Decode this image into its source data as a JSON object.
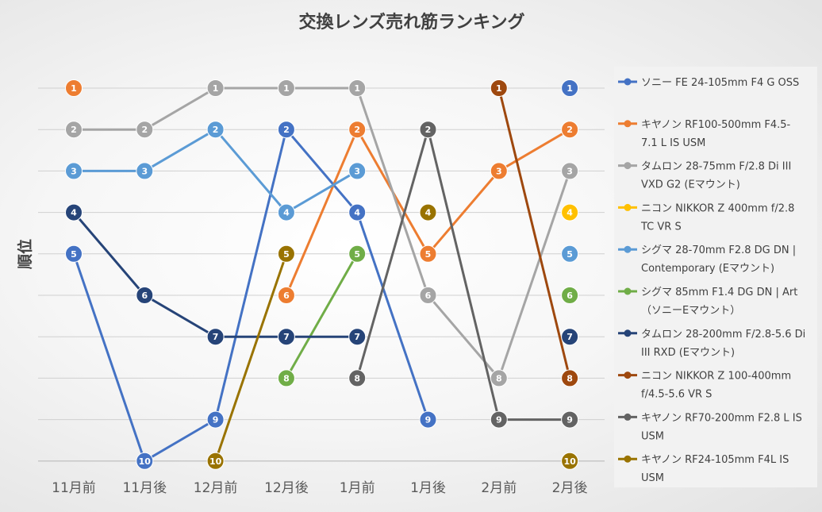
{
  "chart_data": {
    "type": "line",
    "title": "交換レンズ売れ筋ランキング",
    "ylabel": "順位",
    "xlabel": "",
    "categories": [
      "11月前",
      "11月後",
      "12月前",
      "12月後",
      "1月前",
      "1月後",
      "2月前",
      "2月後"
    ],
    "ylim": [
      10,
      1
    ],
    "y_inverted": true,
    "grid": true,
    "legend_position": "right",
    "series": [
      {
        "name": "ソニー FE 24-105mm  F4 G OSS",
        "legend_lines": [
          "ソニー FE 24-105mm  F4 G OSS"
        ],
        "color": "#4472C4",
        "values": [
          5,
          10,
          9,
          2,
          4,
          9,
          null,
          1
        ]
      },
      {
        "name": "キヤノン RF100-500mm F4.5-7.1 L IS USM",
        "legend_lines": [
          "キヤノン RF100-500mm F4.5-",
          "7.1 L IS USM"
        ],
        "color": "#ED7D31",
        "values": [
          1,
          null,
          null,
          6,
          2,
          5,
          3,
          2
        ]
      },
      {
        "name": "タムロン 28-75mm F/2.8 Di III VXD G2 (Eマウント)",
        "legend_lines": [
          "タムロン 28-75mm F/2.8 Di III",
          "VXD G2 (Eマウント)"
        ],
        "color": "#A5A5A5",
        "values": [
          2,
          2,
          1,
          1,
          1,
          6,
          8,
          3
        ]
      },
      {
        "name": "ニコン NIKKOR Z 400mm f/2.8 TC VR S",
        "legend_lines": [
          "ニコン NIKKOR Z 400mm f/2.8",
          "TC VR S"
        ],
        "color": "#FFC000",
        "values": [
          null,
          null,
          null,
          null,
          null,
          null,
          null,
          4
        ]
      },
      {
        "name": "シグマ 28-70mm F2.8 DG DN | Contemporary (Eマウント)",
        "legend_lines": [
          "シグマ 28-70mm F2.8 DG DN |",
          "Contemporary (Eマウント)"
        ],
        "color": "#5B9BD5",
        "values": [
          3,
          3,
          2,
          4,
          3,
          null,
          null,
          5
        ]
      },
      {
        "name": "シグマ 85mm F1.4 DG DN | Art （ソニーEマウント）",
        "legend_lines": [
          "シグマ 85mm F1.4 DG DN | Art",
          "（ソニーEマウント）"
        ],
        "color": "#70AD47",
        "values": [
          null,
          null,
          null,
          8,
          5,
          null,
          null,
          6
        ]
      },
      {
        "name": "タムロン 28-200mm F/2.8-5.6 Di III RXD (Eマウント)",
        "legend_lines": [
          "タムロン 28-200mm F/2.8-5.6 Di",
          "III RXD (Eマウント)"
        ],
        "color": "#264478",
        "values": [
          4,
          6,
          7,
          7,
          7,
          null,
          null,
          7
        ]
      },
      {
        "name": "ニコン NIKKOR Z 100-400mm f/4.5-5.6 VR S",
        "legend_lines": [
          "ニコン NIKKOR Z 100-400mm",
          "f/4.5-5.6 VR S"
        ],
        "color": "#9E480E",
        "values": [
          null,
          null,
          null,
          null,
          null,
          null,
          1,
          8
        ]
      },
      {
        "name": "キヤノン RF70-200mm F2.8 L IS USM",
        "legend_lines": [
          "キヤノン RF70-200mm F2.8 L IS",
          "USM"
        ],
        "color": "#636363",
        "values": [
          null,
          null,
          null,
          null,
          8,
          2,
          9,
          9
        ]
      },
      {
        "name": "キヤノン RF24-105mm F4L IS USM",
        "legend_lines": [
          "キヤノン RF24-105mm F4L IS",
          "USM"
        ],
        "color": "#997300",
        "values": [
          null,
          null,
          10,
          5,
          null,
          4,
          null,
          10
        ]
      }
    ]
  }
}
